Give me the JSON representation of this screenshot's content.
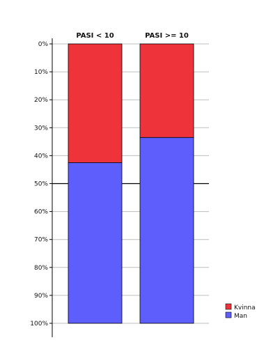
{
  "chart_data": {
    "type": "bar",
    "stacked": true,
    "orientation": "vertical-upside-down",
    "categories": [
      "PASI < 10",
      "PASI >= 10"
    ],
    "series": [
      {
        "name": "Kvinna",
        "color": "#ef333b",
        "values": [
          42.5,
          33.5
        ]
      },
      {
        "name": "Man",
        "color": "#5e5efc",
        "values": [
          57.5,
          66.5
        ]
      }
    ],
    "yticks": [
      "0%",
      "10%",
      "20%",
      "30%",
      "40%",
      "50%",
      "60%",
      "70%",
      "80%",
      "90%",
      "100%"
    ],
    "ylim": [
      0,
      100
    ],
    "grid": true,
    "legend": "bottom-right",
    "title": "",
    "xlabel": "",
    "ylabel": ""
  }
}
